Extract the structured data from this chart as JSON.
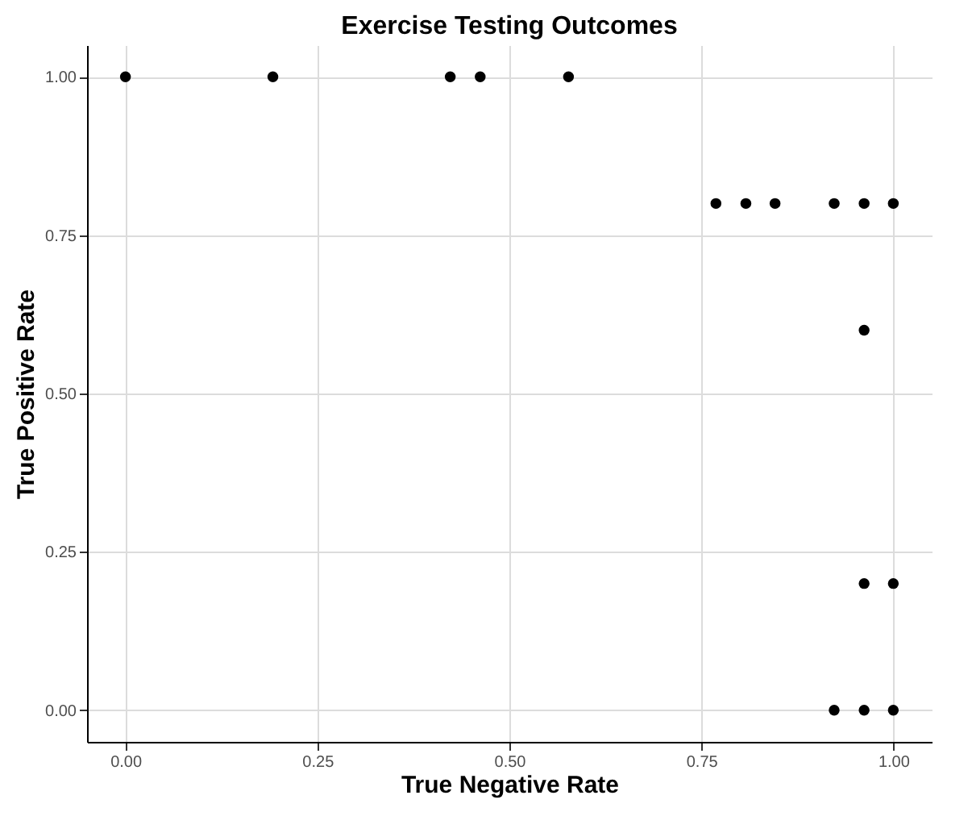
{
  "chart_data": {
    "type": "scatter",
    "title": "Exercise Testing Outcomes",
    "xlabel": "True Negative Rate",
    "ylabel": "True Positive Rate",
    "x": [
      0,
      0.192,
      0.423,
      0.462,
      0.577,
      0.769,
      0.808,
      0.846,
      0.923,
      0.962,
      1.0,
      0.962,
      0.962,
      1.0,
      0.923,
      0.962,
      1.0
    ],
    "values": [
      1,
      1,
      1,
      1,
      1,
      0.8,
      0.8,
      0.8,
      0.8,
      0.8,
      0.8,
      0.6,
      0.2,
      0.2,
      0,
      0,
      0
    ],
    "color": "#000000",
    "marker": "circle",
    "xlim": [
      -0.05,
      1.05
    ],
    "ylim": [
      -0.05,
      1.05
    ],
    "xticks": [
      {
        "value": 0,
        "label": "0.00"
      },
      {
        "value": 0.25,
        "label": "0.25"
      },
      {
        "value": 0.5,
        "label": "0.50"
      },
      {
        "value": 0.75,
        "label": "0.75"
      },
      {
        "value": 1,
        "label": "1.00"
      }
    ],
    "yticks": [
      {
        "value": 0,
        "label": "0.00"
      },
      {
        "value": 0.25,
        "label": "0.25"
      },
      {
        "value": 0.5,
        "label": "0.50"
      },
      {
        "value": 0.75,
        "label": "0.75"
      },
      {
        "value": 1,
        "label": "1.00"
      }
    ],
    "grid": true
  }
}
